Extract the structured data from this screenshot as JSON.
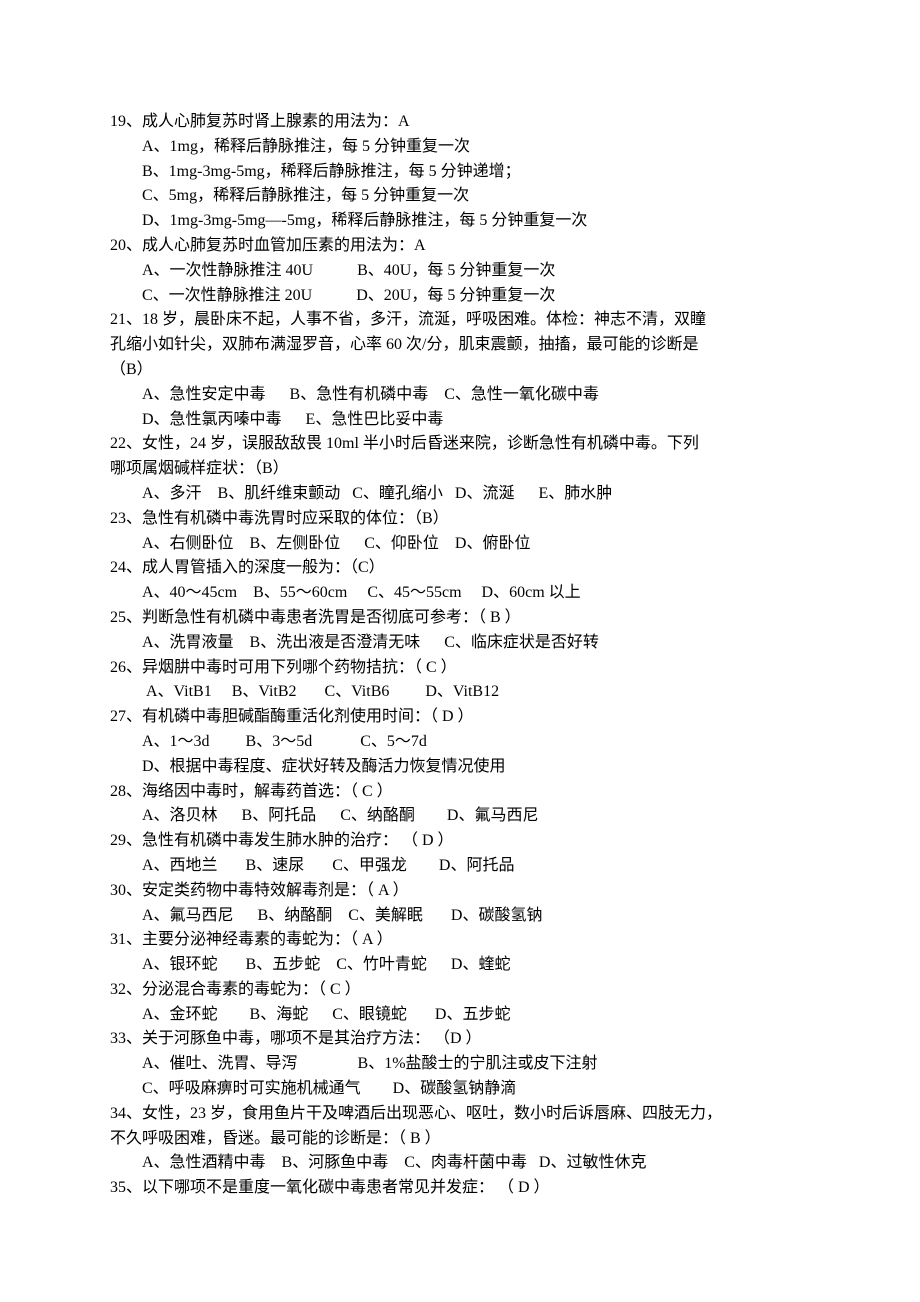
{
  "text_color": "#000000",
  "background_color": "#ffffff",
  "font_family": "SimSun",
  "font_size_pt": 12,
  "questions": [
    {
      "num": "19",
      "stem": "成人心肺复苏时肾上腺素的用法为：A",
      "options": [
        "A、1mg，稀释后静脉推注，每 5 分钟重复一次",
        "B、1mg-3mg-5mg，稀释后静脉推注，每 5 分钟递增；",
        "C、5mg，稀释后静脉推注，每 5 分钟重复一次",
        "D、1mg-3mg-5mg—-5mg，稀释后静脉推注，每 5 分钟重复一次"
      ]
    },
    {
      "num": "20",
      "stem": "成人心肺复苏时血管加压素的用法为：A",
      "options": [
        "A、一次性静脉推注 40U           B、40U，每 5 分钟重复一次",
        "C、一次性静脉推注 20U           D、20U，每 5 分钟重复一次"
      ]
    },
    {
      "num": "21",
      "stem": "18 岁，晨卧床不起，人事不省，多汗，流涎，呼吸困难。体检：神志不清，双瞳",
      "stem_cont": [
        "孔缩小如针尖，双肺布满湿罗音，心率 60 次/分，肌束震颤，抽搐，最可能的诊断是",
        "（B）"
      ],
      "options": [
        "A、急性安定中毒      B、急性有机磷中毒    C、急性一氧化碳中毒",
        "D、急性氯丙嗪中毒      E、急性巴比妥中毒"
      ]
    },
    {
      "num": "22",
      "stem": "女性，24 岁，误服敌敌畏 10ml 半小时后昏迷来院，诊断急性有机磷中毒。下列",
      "stem_cont": [
        "哪项属烟碱样症状：（B）"
      ],
      "options": [
        "A、多汗    B、肌纤维束颤动   C、瞳孔缩小   D、流涎      E、肺水肿"
      ]
    },
    {
      "num": "23",
      "stem": "急性有机磷中毒洗胃时应采取的体位：（B）",
      "options": [
        "A、右侧卧位    B、左侧卧位      C、仰卧位    D、俯卧位"
      ]
    },
    {
      "num": "24",
      "stem": "成人胃管插入的深度一般为：（C）",
      "options": [
        "A、40～45cm    B、55～60cm     C、45～55cm     D、60cm 以上"
      ]
    },
    {
      "num": "25",
      "stem": "判断急性有机磷中毒患者洗胃是否彻底可参考：（ B ）",
      "options": [
        "A、洗胃液量    B、洗出液是否澄清无味      C、临床症状是否好转"
      ]
    },
    {
      "num": "26",
      "stem": "异烟肼中毒时可用下列哪个药物拮抗：（ C ）",
      "options": [
        " A、VitB1     B、VitB2       C、VitB6         D、VitB12"
      ]
    },
    {
      "num": "27",
      "stem": "有机磷中毒胆碱酯酶重活化剂使用时间：（ D ）",
      "options": [
        "A、1～3d         B、3～5d            C、5～7d",
        "D、根据中毒程度、症状好转及酶活力恢复情况使用"
      ]
    },
    {
      "num": "28",
      "stem": "海络因中毒时，解毒药首选：（ C ）",
      "options": [
        "A、洛贝林      B、阿托品      C、纳酪酮        D、氟马西尼"
      ]
    },
    {
      "num": "29",
      "stem": "急性有机磷中毒发生肺水肿的治疗： （ D ）",
      "options": [
        "A、西地兰       B、速尿       C、甲强龙        D、阿托品"
      ]
    },
    {
      "num": "30",
      "stem": "安定类药物中毒特效解毒剂是：（ A ）",
      "options": [
        "A、氟马西尼      B、纳酪酮    C、美解眠       D、碳酸氢钠"
      ]
    },
    {
      "num": "31",
      "stem": "主要分泌神经毒素的毒蛇为：（ A ）",
      "options": [
        "A、银环蛇       B、五步蛇    C、竹叶青蛇      D、蝰蛇"
      ]
    },
    {
      "num": "32",
      "stem": "分泌混合毒素的毒蛇为：（ C ）",
      "options": [
        "A、金环蛇        B、海蛇      C、眼镜蛇       D、五步蛇"
      ]
    },
    {
      "num": "33",
      "stem": "关于河豚鱼中毒，哪项不是其治疗方法： （D ）",
      "options": [
        "A、催吐、洗胃、导泻               B、1%盐酸士的宁肌注或皮下注射",
        "C、呼吸麻痹时可实施机械通气        D、碳酸氢钠静滴"
      ]
    },
    {
      "num": "34",
      "stem": "女性，23 岁，食用鱼片干及啤酒后出现恶心、呕吐，数小时后诉唇麻、四肢无力，",
      "stem_cont": [
        "不久呼吸困难，昏迷。最可能的诊断是：（ B ）"
      ],
      "options": [
        "A、急性酒精中毒    B、河豚鱼中毒    C、肉毒杆菌中毒   D、过敏性休克"
      ]
    },
    {
      "num": "35",
      "stem": "以下哪项不是重度一氧化碳中毒患者常见并发症： （ D ）",
      "options": []
    }
  ]
}
